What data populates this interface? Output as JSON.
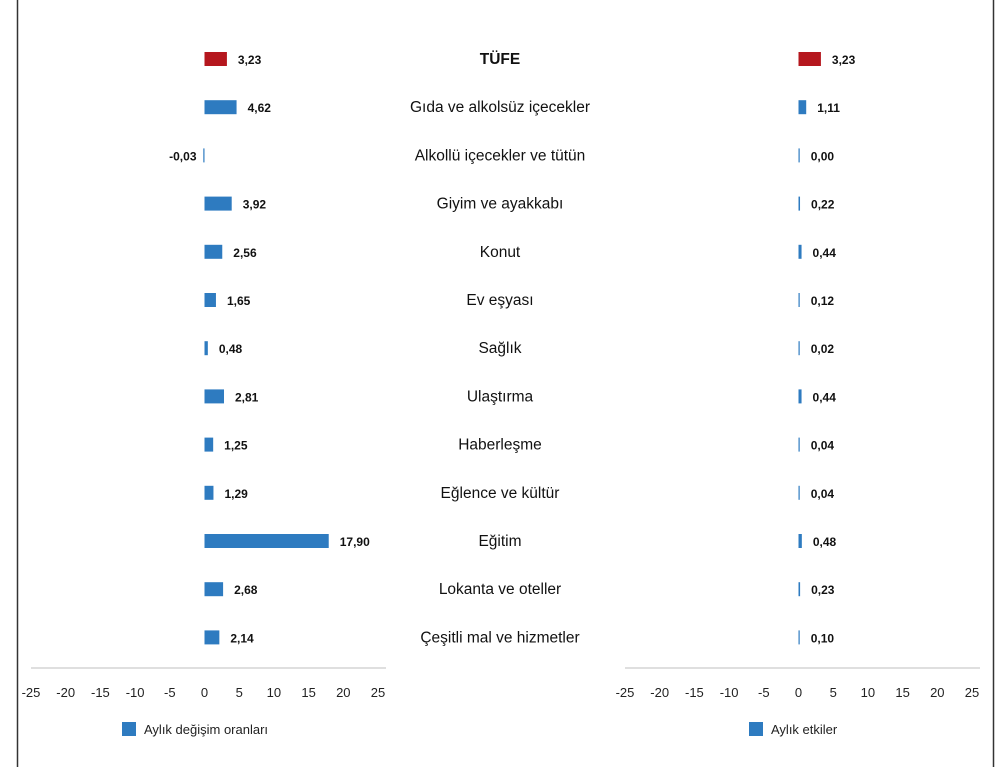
{
  "chart_data": [
    {
      "type": "bar",
      "orientation": "horizontal",
      "categories": [
        "TÜFE",
        "Gıda ve alkolsüz içecekler",
        "Alkollü içecekler ve tütün",
        "Giyim ve ayakkabı",
        "Konut",
        "Ev eşyası",
        "Sağlık",
        "Ulaştırma",
        "Haberleşme",
        "Eğlence ve kültür",
        "Eğitim",
        "Lokanta ve oteller",
        "Çeşitli mal ve hizmetler"
      ],
      "series": [
        {
          "name": "Aylık değişim oranları",
          "values": [
            3.23,
            4.62,
            -0.03,
            3.92,
            2.56,
            1.65,
            0.48,
            2.81,
            1.25,
            1.29,
            17.9,
            2.68,
            2.14
          ],
          "labels": [
            "3,23",
            "4,62",
            "-0,03",
            "3,92",
            "2,56",
            "1,65",
            "0,48",
            "2,81",
            "1,25",
            "1,29",
            "17,90",
            "2,68",
            "2,14"
          ]
        }
      ],
      "xlim": [
        -25,
        25
      ],
      "xticks": [
        "-25",
        "-20",
        "-15",
        "-10",
        "-5",
        "0",
        "5",
        "10",
        "15",
        "20",
        "25"
      ],
      "grid": false,
      "legend": "bottom-left"
    },
    {
      "type": "bar",
      "orientation": "horizontal",
      "categories": [
        "TÜFE",
        "Gıda ve alkolsüz içecekler",
        "Alkollü içecekler ve tütün",
        "Giyim ve ayakkabı",
        "Konut",
        "Ev eşyası",
        "Sağlık",
        "Ulaştırma",
        "Haberleşme",
        "Eğlence ve kültür",
        "Eğitim",
        "Lokanta ve oteller",
        "Çeşitli mal ve hizmetler"
      ],
      "series": [
        {
          "name": "Aylık etkiler",
          "values": [
            3.23,
            1.11,
            0.0,
            0.22,
            0.44,
            0.12,
            0.02,
            0.44,
            0.04,
            0.04,
            0.48,
            0.23,
            0.1
          ],
          "labels": [
            "3,23",
            "1,11",
            "0,00",
            "0,22",
            "0,44",
            "0,12",
            "0,02",
            "0,44",
            "0,04",
            "0,04",
            "0,48",
            "0,23",
            "0,10"
          ]
        }
      ],
      "xlim": [
        -25,
        25
      ],
      "xticks": [
        "-25",
        "-20",
        "-15",
        "-10",
        "-5",
        "0",
        "5",
        "10",
        "15",
        "20",
        "25"
      ],
      "grid": false,
      "legend": "bottom-center"
    }
  ],
  "colors": {
    "bar": "#2e7bc0",
    "highlight": "#b5171e",
    "axis": "#bfbfbf",
    "frame": "#333333"
  },
  "legend_icon": "blue-square-marker"
}
